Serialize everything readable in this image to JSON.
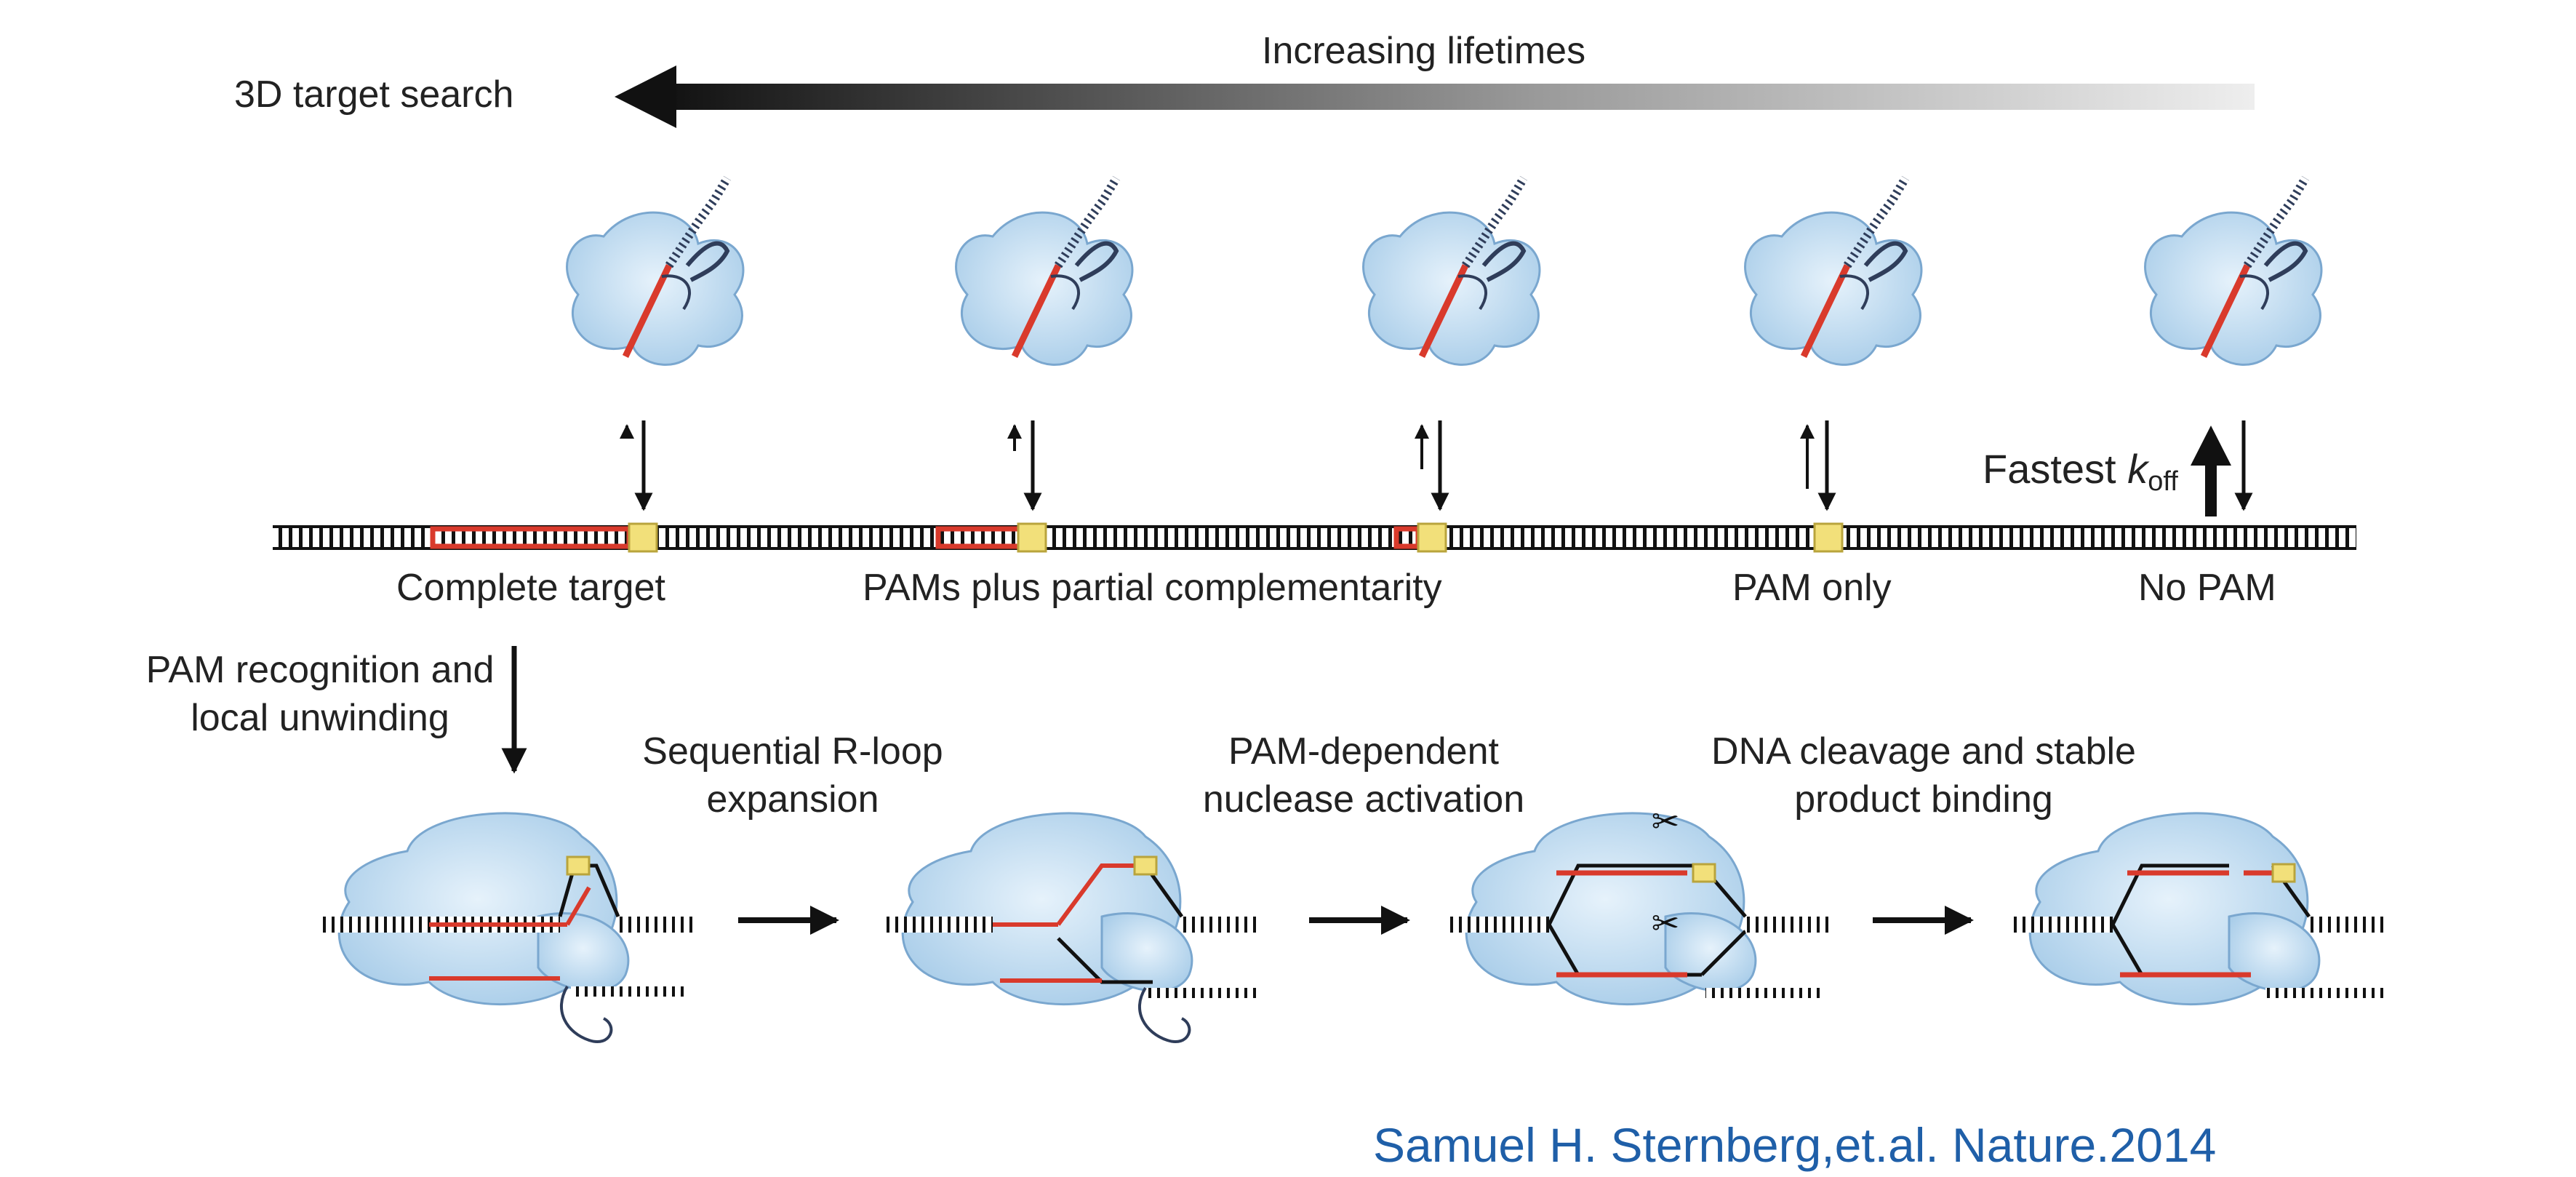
{
  "header": {
    "left_label": "3D target search",
    "arrow_label": "Increasing lifetimes"
  },
  "targets": [
    {
      "label": "Complete target"
    },
    {
      "label": "PAMs plus partial complementarity"
    },
    {
      "label": "PAM only"
    },
    {
      "label": "No PAM"
    }
  ],
  "koff": {
    "prefix": "Fastest",
    "symbol": "k",
    "subscript": "off"
  },
  "steps": {
    "recognition": "PAM recognition and\nlocal unwinding",
    "expansion": "Sequential R-loop\nexpansion",
    "activation": "PAM-dependent\nnuclease activation",
    "cleavage": "DNA cleavage and stable\nproduct binding"
  },
  "citation": "Samuel H. Sternberg,et.al. Nature.2014",
  "colors": {
    "protein": "#bcd8ee",
    "rna_guide": "#d93a2c",
    "pam": "#f2e07a",
    "dna": "#111111",
    "citation": "#1f5fa8"
  }
}
